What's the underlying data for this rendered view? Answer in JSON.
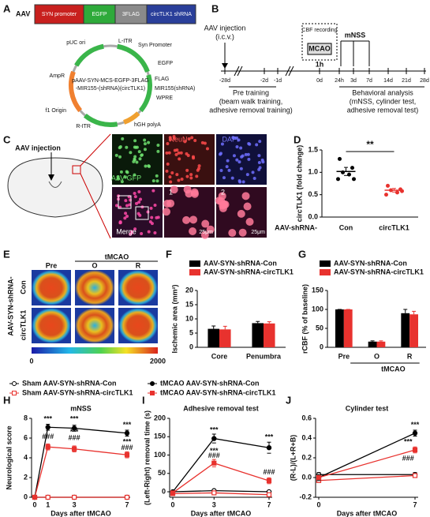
{
  "panel_labels": [
    "A",
    "B",
    "C",
    "D",
    "E",
    "F",
    "G",
    "H",
    "I",
    "J"
  ],
  "construct": {
    "prefix": "AAV",
    "elements": [
      "SYN promoter",
      "EGFP",
      "3FLAG",
      "circTLK1 shRNA"
    ]
  },
  "plasmid": {
    "name": [
      "pAAV-SYN-MCS-EGFP-3FLAG",
      "-MIR155-(shRNA)(circTLK1)"
    ],
    "features": [
      "L-ITR",
      "Syn Promoter",
      "EGFP",
      "FLAG",
      "MIR155(shRNA)",
      "WPRE",
      "hGH polyA",
      "R-ITR",
      "f1 Origin",
      "AmpR",
      "pUC ori"
    ]
  },
  "timeline": {
    "injection": [
      "AAV injection",
      "(i.c.v.)"
    ],
    "cbf": "CBF recording",
    "mcao": "MCAO",
    "duration": "1h",
    "mnss": "mNSS",
    "ticks": [
      "-28d",
      "-2d",
      "-1d",
      "0d",
      "24h",
      "3d",
      "7d",
      "14d",
      "21d",
      "28d"
    ],
    "pre": [
      "Pre training",
      "(beam walk training,",
      "adhesive removal training)"
    ],
    "post": [
      "Behavioral analysis",
      "(mNSS, cylinder test,",
      "adhesive removal test)"
    ]
  },
  "panel_c": {
    "injection": "AAV injection",
    "channels": [
      "AAV-GFP",
      "NeuN",
      "DAPI",
      "Merge"
    ],
    "zooms": [
      "1",
      "2"
    ],
    "scale": "25μm"
  },
  "panel_e": {
    "group": "AAV-SYN-shRNA-",
    "rows": [
      "Con",
      "circTLK1"
    ],
    "columns": [
      "Pre",
      "O",
      "R"
    ],
    "top": "tMCAO",
    "scale": [
      "0",
      "2000"
    ]
  },
  "chart_data": [
    {
      "type": "dot",
      "ylabel": "circTLK1 (fold change)",
      "xlabel_prefix": "AAV-shRNA-",
      "categories": [
        "Con",
        "circTLK1"
      ],
      "colors": [
        "#000000",
        "#e8322e"
      ],
      "values": [
        1.02,
        0.6
      ],
      "errors": [
        0.09,
        0.04
      ],
      "points": [
        [
          1.3,
          1.1,
          1.0,
          0.95,
          0.85,
          0.85
        ],
        [
          0.7,
          0.62,
          0.6,
          0.55,
          0.5,
          0.58
        ]
      ],
      "annotation": "**",
      "ylim": [
        0,
        1.5
      ],
      "yticks": [
        {
          "value": 0,
          "label": "0.0"
        },
        0.5,
        {
          "value": 1,
          "label": "1.0"
        },
        1.5
      ]
    },
    {
      "type": "bar",
      "ylabel": "Ischemic area (mm²)",
      "categories": [
        "Core",
        "Penumbra"
      ],
      "series": [
        {
          "name": "AAV-SYN-shRNA-Con",
          "color": "#000000",
          "values": [
            6.5,
            8.5
          ],
          "errors": [
            1.0,
            0.6
          ]
        },
        {
          "name": "AAV-SYN-shRNA-circTLK1",
          "color": "#e8322e",
          "values": [
            6.3,
            8.4
          ],
          "errors": [
            1.1,
            0.6
          ]
        }
      ],
      "ylim": [
        0,
        20
      ],
      "yticks": [
        0,
        5,
        10,
        15,
        20
      ]
    },
    {
      "type": "bar",
      "ylabel": "rCBF (% of baseline)",
      "categories": [
        "Pre",
        "O",
        "R"
      ],
      "group_label": "tMCAO",
      "series": [
        {
          "name": "AAV-SYN-shRNA-Con",
          "color": "#000000",
          "values": [
            100,
            15,
            90
          ],
          "errors": [
            0,
            2,
            10
          ]
        },
        {
          "name": "AAV-SYN-shRNA-circTLK1",
          "color": "#e8322e",
          "values": [
            100,
            15,
            87
          ],
          "errors": [
            0,
            2,
            8
          ]
        }
      ],
      "ylim": [
        0,
        150
      ],
      "yticks": [
        0,
        50,
        100,
        150
      ]
    },
    {
      "type": "line",
      "title": "mNSS",
      "ylabel": "Neurological score",
      "xlabel": "Days after tMCAO",
      "legend": true,
      "x": [
        0,
        1,
        3,
        7
      ],
      "xlim": [
        0,
        7
      ],
      "xticks": [
        0,
        1,
        3,
        7
      ],
      "ylim": [
        0,
        8
      ],
      "yticks": [
        0,
        2,
        4,
        6,
        8
      ],
      "series": [
        {
          "name": "Sham AAV-SYN-shRNA-Con",
          "color": "#000000",
          "marker": "circle-open",
          "values": [
            0,
            0,
            0,
            0
          ],
          "errors": [
            0,
            0,
            0,
            0
          ]
        },
        {
          "name": "Sham AAV-SYN-shRNA-circTLK1",
          "color": "#e8322e",
          "marker": "square-open",
          "values": [
            0,
            0,
            0,
            0
          ],
          "errors": [
            0,
            0,
            0,
            0
          ]
        },
        {
          "name": "tMCAO AAV-SYN-shRNA-Con",
          "color": "#000000",
          "marker": "circle",
          "values": [
            0,
            7.1,
            7.0,
            6.5
          ],
          "errors": [
            0,
            0.3,
            0.3,
            0.3
          ]
        },
        {
          "name": "tMCAO AAV-SYN-shRNA-circTLK1",
          "color": "#e8322e",
          "marker": "square",
          "values": [
            0,
            5.1,
            4.9,
            4.3
          ],
          "errors": [
            0,
            0.3,
            0.3,
            0.3
          ]
        }
      ],
      "annotations": [
        {
          "text": "***",
          "x": 1,
          "y": 7.9
        },
        {
          "text": "###",
          "x": 1,
          "y": 6.1
        },
        {
          "text": "***",
          "x": 3,
          "y": 7.9
        },
        {
          "text": "***",
          "x": 3,
          "y": 6.6
        },
        {
          "text": "###",
          "x": 3,
          "y": 6.0
        },
        {
          "text": "***",
          "x": 7,
          "y": 7.3
        },
        {
          "text": "***",
          "x": 7,
          "y": 5.6
        },
        {
          "text": "###",
          "x": 7,
          "y": 5.0
        }
      ]
    },
    {
      "type": "line",
      "title": "Adhesive removal test",
      "ylabel": "(Left-Right) removal time (s)",
      "xlabel": "Days after tMCAO",
      "x": [
        0,
        3,
        7
      ],
      "xlim": [
        0,
        7
      ],
      "xticks": [
        0,
        3,
        7
      ],
      "ylim": [
        -15,
        200
      ],
      "yticks": [
        0,
        50,
        100,
        150,
        200
      ],
      "series": [
        {
          "color": "#000000",
          "marker": "circle-open",
          "values": [
            0,
            3,
            0
          ],
          "errors": [
            2,
            3,
            3
          ]
        },
        {
          "color": "#e8322e",
          "marker": "square-open",
          "values": [
            -5,
            -3,
            -8
          ],
          "errors": [
            2,
            3,
            3
          ]
        },
        {
          "color": "#000000",
          "marker": "circle",
          "values": [
            0,
            145,
            120
          ],
          "errors": [
            2,
            12,
            15
          ]
        },
        {
          "color": "#e8322e",
          "marker": "square",
          "values": [
            -3,
            78,
            30
          ],
          "errors": [
            2,
            10,
            8
          ]
        }
      ],
      "annotations": [
        {
          "text": "***",
          "x": 3,
          "y": 168
        },
        {
          "text": "***",
          "x": 3,
          "y": 110
        },
        {
          "text": "###",
          "x": 3,
          "y": 98
        },
        {
          "text": "***",
          "x": 7,
          "y": 148
        },
        {
          "text": "###",
          "x": 7,
          "y": 52
        }
      ]
    },
    {
      "type": "line",
      "title": "Cylinder test",
      "ylabel": "(R-L)/(L+R+B)",
      "xlabel": "Days after tMCAO",
      "x": [
        0,
        7
      ],
      "xlim": [
        0,
        7
      ],
      "xticks": [
        0,
        7
      ],
      "ylim": [
        -0.2,
        0.6
      ],
      "yticks": [
        -0.2,
        {
          "value": 0,
          "label": "0.0"
        },
        0.2,
        0.4,
        0.6
      ],
      "series": [
        {
          "color": "#000000",
          "marker": "circle-open",
          "values": [
            0.03,
            0.03
          ],
          "errors": [
            0.02,
            0.02
          ]
        },
        {
          "color": "#e8322e",
          "marker": "square-open",
          "values": [
            -0.03,
            0.02
          ],
          "errors": [
            0.02,
            0.02
          ]
        },
        {
          "color": "#000000",
          "marker": "circle",
          "values": [
            0,
            0.45
          ],
          "errors": [
            0.03,
            0.03
          ]
        },
        {
          "color": "#e8322e",
          "marker": "square",
          "values": [
            0,
            0.28
          ],
          "errors": [
            0.02,
            0.03
          ]
        }
      ],
      "annotations": [
        {
          "text": "***",
          "x": 7,
          "y": 0.53
        },
        {
          "text": "***",
          "x": 6.5,
          "y": 0.36
        },
        {
          "text": "###",
          "x": 6.5,
          "y": 0.19
        }
      ]
    }
  ]
}
